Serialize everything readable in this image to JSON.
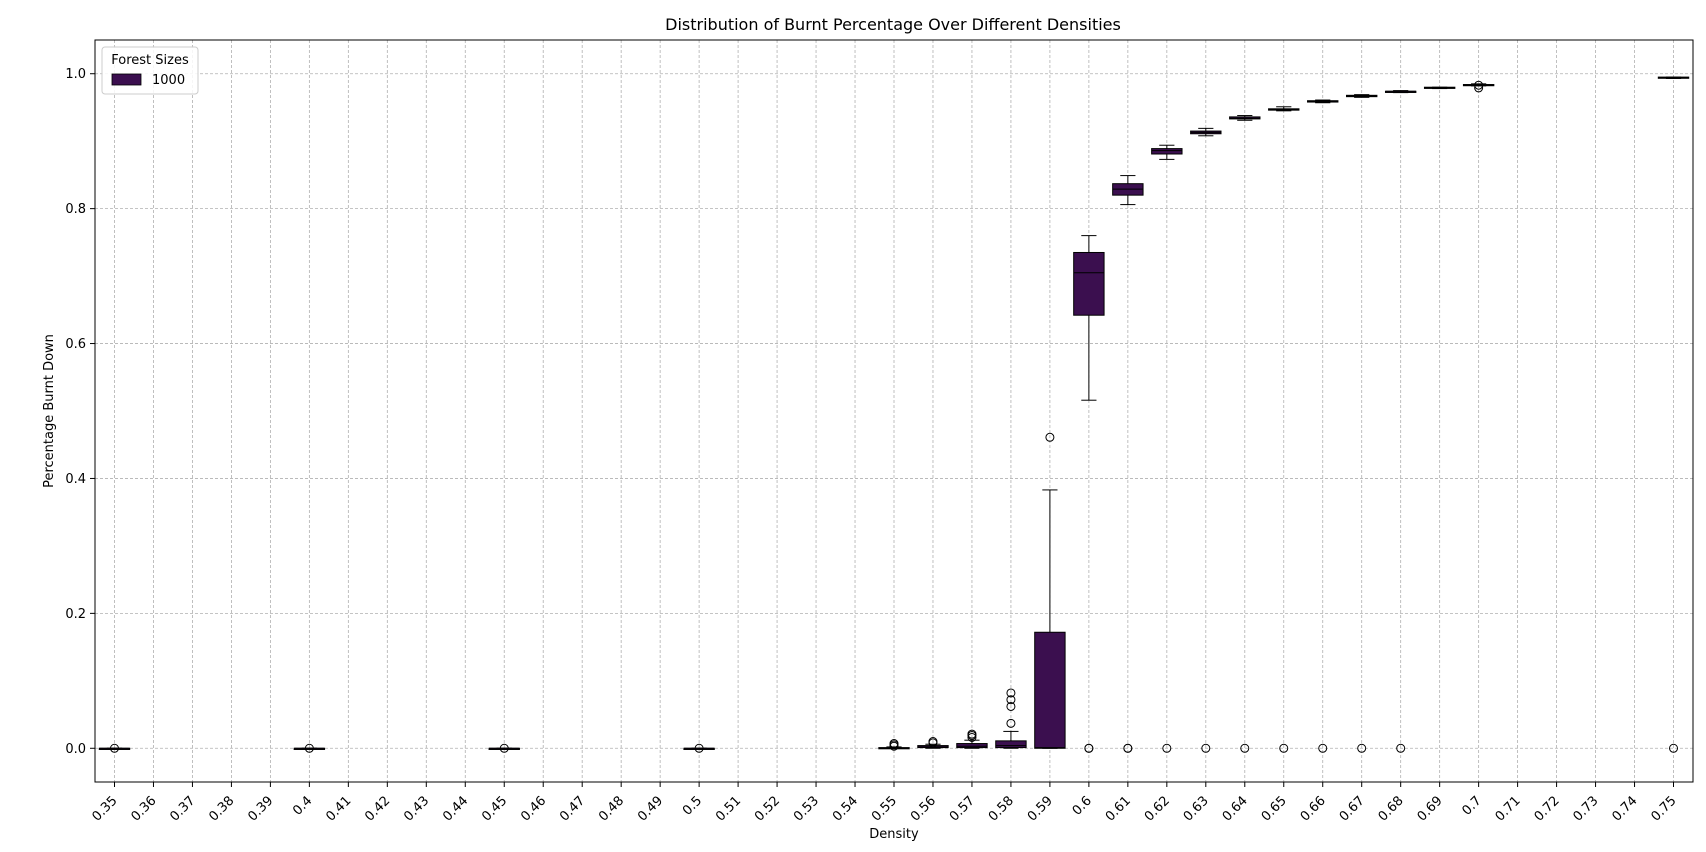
{
  "chart_data": {
    "type": "box",
    "title": "Distribution of Burnt Percentage Over Different Densities",
    "xlabel": "Density",
    "ylabel": "Percentage Burnt Down",
    "ylim": [
      -0.05,
      1.05
    ],
    "yticks": [
      "0.0",
      "0.2",
      "0.4",
      "0.6",
      "0.8",
      "1.0"
    ],
    "ytick_values": [
      0.0,
      0.2,
      0.4,
      0.6,
      0.8,
      1.0
    ],
    "categories": [
      "0.35",
      "0.36",
      "0.37",
      "0.38",
      "0.39",
      "0.4",
      "0.41",
      "0.42",
      "0.43",
      "0.44",
      "0.45",
      "0.46",
      "0.47",
      "0.48",
      "0.49",
      "0.5",
      "0.51",
      "0.52",
      "0.53",
      "0.54",
      "0.55",
      "0.56",
      "0.57",
      "0.58",
      "0.59",
      "0.6",
      "0.61",
      "0.62",
      "0.63",
      "0.64",
      "0.65",
      "0.66",
      "0.67",
      "0.68",
      "0.69",
      "0.7",
      "0.71",
      "0.72",
      "0.73",
      "0.74",
      "0.75"
    ],
    "grid": true,
    "legend": {
      "title": "Forest Sizes",
      "position": "top-left"
    },
    "series": [
      {
        "name": "1000",
        "color": "#3b0f4f",
        "boxes": [
          {
            "category": "0.35",
            "whislo": 0.0,
            "q1": 0.0,
            "med": 0.0,
            "q3": 0.0,
            "whishi": 0.0,
            "fliers": [
              0.0
            ]
          },
          {
            "category": "0.4",
            "whislo": 0.0,
            "q1": 0.0,
            "med": 0.0,
            "q3": 0.0,
            "whishi": 0.0,
            "fliers": [
              0.0
            ]
          },
          {
            "category": "0.45",
            "whislo": 0.0,
            "q1": 0.0,
            "med": 0.0,
            "q3": 0.0,
            "whishi": 0.0,
            "fliers": [
              0.0
            ]
          },
          {
            "category": "0.5",
            "whislo": 0.0,
            "q1": 0.0,
            "med": 0.0,
            "q3": 0.0,
            "whishi": 0.0,
            "fliers": [
              0.0
            ]
          },
          {
            "category": "0.55",
            "whislo": 0.0,
            "q1": 0.0,
            "med": 0.0,
            "q3": 0.001,
            "whishi": 0.002,
            "fliers": [
              0.003,
              0.005,
              0.007
            ]
          },
          {
            "category": "0.56",
            "whislo": 0.0,
            "q1": 0.001,
            "med": 0.002,
            "q3": 0.004,
            "whishi": 0.006,
            "fliers": [
              0.008,
              0.01
            ]
          },
          {
            "category": "0.57",
            "whislo": 0.0,
            "q1": 0.001,
            "med": 0.003,
            "q3": 0.007,
            "whishi": 0.012,
            "fliers": [
              0.016,
              0.019,
              0.021
            ]
          },
          {
            "category": "0.58",
            "whislo": 0.0,
            "q1": 0.001,
            "med": 0.004,
            "q3": 0.011,
            "whishi": 0.025,
            "fliers": [
              0.037,
              0.062,
              0.072,
              0.082
            ]
          },
          {
            "category": "0.59",
            "whislo": 0.0,
            "q1": 0.0,
            "med": 0.001,
            "q3": 0.172,
            "whishi": 0.383,
            "fliers": [
              0.461
            ]
          },
          {
            "category": "0.6",
            "whislo": 0.516,
            "q1": 0.642,
            "med": 0.705,
            "q3": 0.735,
            "whishi": 0.76,
            "fliers": [
              0.0,
              0.0
            ]
          },
          {
            "category": "0.61",
            "whislo": 0.806,
            "q1": 0.82,
            "med": 0.829,
            "q3": 0.837,
            "whishi": 0.849,
            "fliers": [
              0.0,
              0.0
            ]
          },
          {
            "category": "0.62",
            "whislo": 0.873,
            "q1": 0.881,
            "med": 0.886,
            "q3": 0.889,
            "whishi": 0.894,
            "fliers": [
              0.0
            ]
          },
          {
            "category": "0.63",
            "whislo": 0.908,
            "q1": 0.911,
            "med": 0.913,
            "q3": 0.915,
            "whishi": 0.919,
            "fliers": [
              0.0
            ]
          },
          {
            "category": "0.64",
            "whislo": 0.931,
            "q1": 0.933,
            "med": 0.934,
            "q3": 0.936,
            "whishi": 0.938,
            "fliers": [
              0.0
            ]
          },
          {
            "category": "0.65",
            "whislo": 0.945,
            "q1": 0.946,
            "med": 0.947,
            "q3": 0.948,
            "whishi": 0.951,
            "fliers": [
              0.0
            ]
          },
          {
            "category": "0.66",
            "whislo": 0.957,
            "q1": 0.958,
            "med": 0.959,
            "q3": 0.96,
            "whishi": 0.961,
            "fliers": [
              0.0
            ]
          },
          {
            "category": "0.67",
            "whislo": 0.965,
            "q1": 0.966,
            "med": 0.967,
            "q3": 0.968,
            "whishi": 0.969,
            "fliers": [
              0.0
            ]
          },
          {
            "category": "0.68",
            "whislo": 0.972,
            "q1": 0.973,
            "med": 0.974,
            "q3": 0.974,
            "whishi": 0.975,
            "fliers": [
              0.0
            ]
          },
          {
            "category": "0.69",
            "whislo": 0.978,
            "q1": 0.979,
            "med": 0.979,
            "q3": 0.98,
            "whishi": 0.98,
            "fliers": []
          },
          {
            "category": "0.7",
            "whislo": 0.982,
            "q1": 0.983,
            "med": 0.983,
            "q3": 0.984,
            "whishi": 0.985,
            "fliers": [
              0.979,
              0.983
            ]
          },
          {
            "category": "0.75",
            "whislo": 0.993,
            "q1": 0.994,
            "med": 0.994,
            "q3": 0.995,
            "whishi": 0.995,
            "fliers": [
              0.0
            ]
          }
        ]
      }
    ]
  }
}
